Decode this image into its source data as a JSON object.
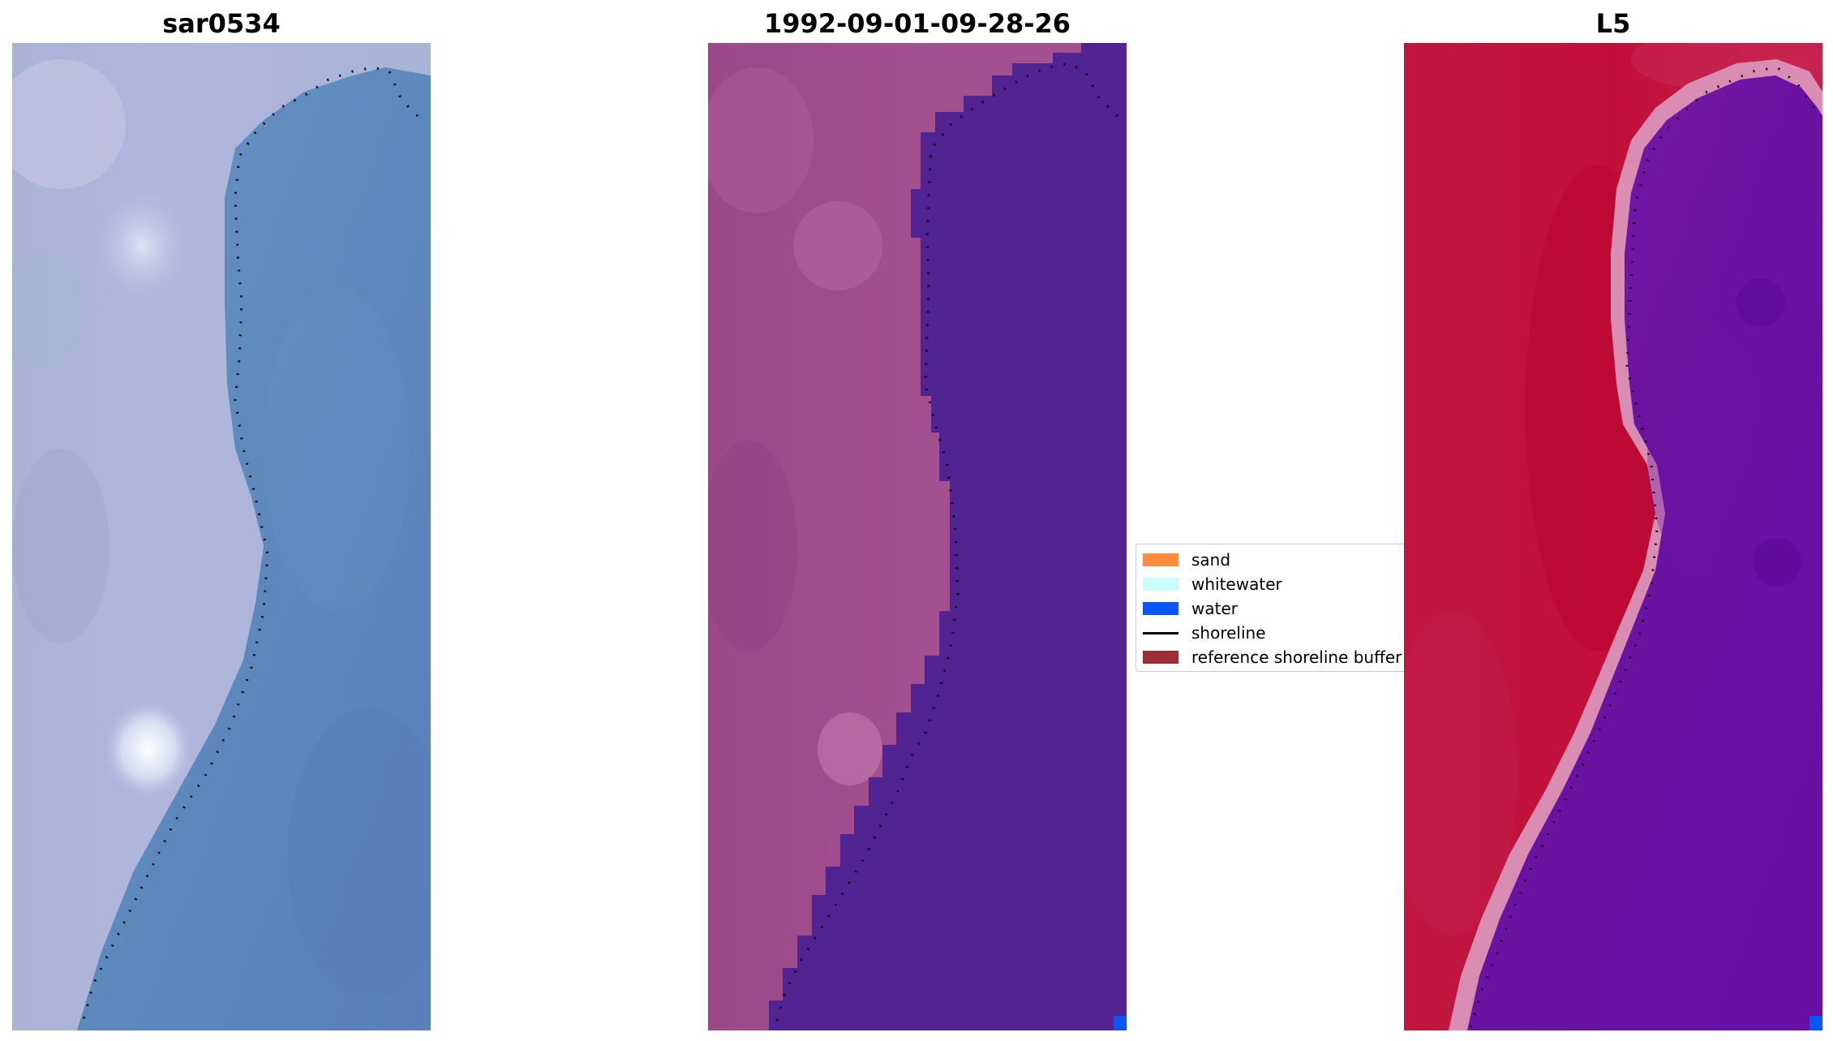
{
  "panels": [
    {
      "title": "sar0534"
    },
    {
      "title": "1992-09-01-09-28-26"
    },
    {
      "title": "L5"
    }
  ],
  "legend": {
    "items": [
      {
        "label": "sand",
        "color": "#ff8c3c"
      },
      {
        "label": "whitewater",
        "color": "#cbfdfd"
      },
      {
        "label": "water",
        "color": "#0a55f5"
      },
      {
        "label": "shoreline",
        "color": "#000000"
      },
      {
        "label": "reference shoreline buffer",
        "color": "#9a2e32"
      }
    ]
  },
  "colors": {
    "rgb_land": "#aab0d6",
    "rgb_water": "#5b87bd",
    "classified_land": "#a2508e",
    "classified_water": "#512494",
    "index_land": "#c2163e",
    "index_water": "#6610a2",
    "index_edge": "#d88ab0"
  }
}
